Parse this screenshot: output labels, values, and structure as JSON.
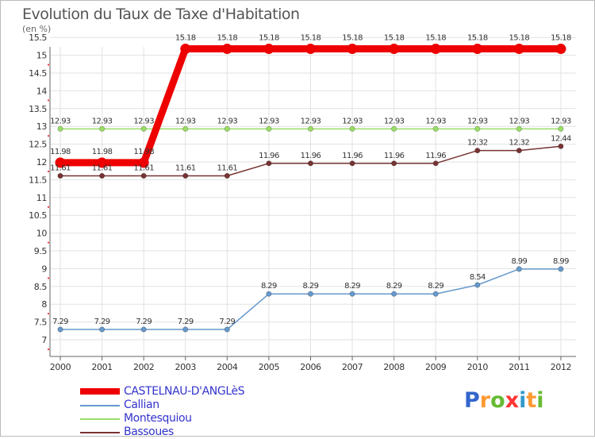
{
  "chart_data": {
    "type": "line",
    "title": "Evolution du Taux de Taxe d'Habitation",
    "ylabel": "(en %)",
    "xlabel": "",
    "x": [
      "2000",
      "2001",
      "2002",
      "2003",
      "2004",
      "2005",
      "2006",
      "2007",
      "2008",
      "2009",
      "2010",
      "2011",
      "2012"
    ],
    "ylim": [
      7,
      15.5
    ],
    "yticks": [
      "7",
      "7.5",
      "8",
      "8.5",
      "9",
      "9.5",
      "10",
      "10.5",
      "11",
      "11.5",
      "12",
      "12.5",
      "13",
      "13.5",
      "14",
      "14.5",
      "15",
      "15.5"
    ],
    "series": [
      {
        "name": "CASTELNAU-D'ANGLèS",
        "color": "#ee0000",
        "values": [
          11.98,
          11.98,
          11.98,
          15.18,
          15.18,
          15.18,
          15.18,
          15.18,
          15.18,
          15.18,
          15.18,
          15.18,
          15.18
        ],
        "labels": [
          "11.98",
          "11.98",
          "11.98",
          "15.18",
          "15.18",
          "15.18",
          "15.18",
          "15.18",
          "15.18",
          "15.18",
          "15.18",
          "15.18",
          "15.18"
        ]
      },
      {
        "name": "Callian",
        "color": "#6699cc",
        "values": [
          7.29,
          7.29,
          7.29,
          7.29,
          7.29,
          8.29,
          8.29,
          8.29,
          8.29,
          8.29,
          8.54,
          8.99,
          8.99
        ],
        "labels": [
          "7.29",
          "7.29",
          "7.29",
          "7.29",
          "7.29",
          "8.29",
          "8.29",
          "8.29",
          "8.29",
          "8.29",
          "8.54",
          "8.99",
          "8.99"
        ]
      },
      {
        "name": "Montesquiou",
        "color": "#99dd66",
        "values": [
          12.93,
          12.93,
          12.93,
          12.93,
          12.93,
          12.93,
          12.93,
          12.93,
          12.93,
          12.93,
          12.93,
          12.93,
          12.93
        ],
        "labels": [
          "12.93",
          "12.93",
          "12.93",
          "12.93",
          "12.93",
          "12.93",
          "12.93",
          "12.93",
          "12.93",
          "12.93",
          "12.93",
          "12.93",
          "12.93"
        ]
      },
      {
        "name": "Bassoues",
        "color": "#773333",
        "values": [
          11.61,
          11.61,
          11.61,
          11.61,
          11.61,
          11.96,
          11.96,
          11.96,
          11.96,
          11.96,
          12.32,
          12.32,
          12.44
        ],
        "labels": [
          "11.61",
          "11.61",
          "11.61",
          "11.61",
          "11.61",
          "11.96",
          "11.96",
          "11.96",
          "11.96",
          "11.96",
          "12.32",
          "12.32",
          "12.44"
        ]
      }
    ]
  },
  "logo": {
    "text": "Proxiti",
    "letters": [
      "P",
      "r",
      "o",
      "x",
      "i",
      "t",
      "i"
    ]
  }
}
